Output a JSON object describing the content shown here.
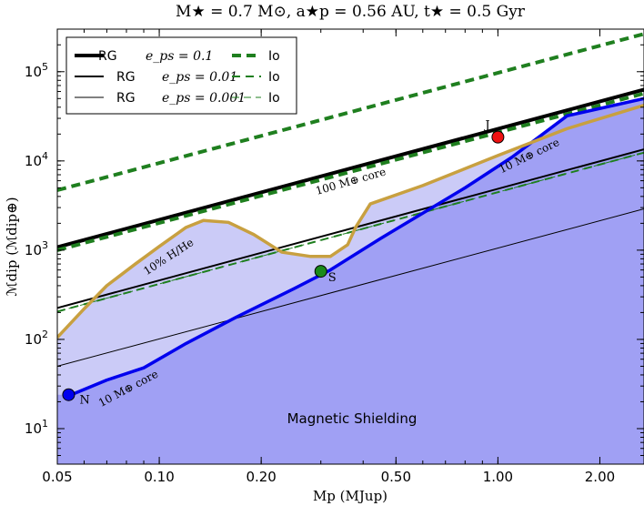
{
  "chart_data": {
    "type": "line",
    "title": "M★ = 0.7 M⊙, a★p = 0.56 AU, t★ = 0.5 Gyr",
    "xlabel": "Mp (MJup)",
    "ylabel": "ℳdip (ℳdip⊕)",
    "x_scale": "log",
    "y_scale": "log",
    "xlim": [
      0.05,
      2.7
    ],
    "ylim": [
      4,
      300000
    ],
    "x_ticks": [
      {
        "value": 0.05,
        "label": "0.05"
      },
      {
        "value": 0.1,
        "label": "0.10"
      },
      {
        "value": 0.2,
        "label": "0.20"
      },
      {
        "value": 0.5,
        "label": "0.50"
      },
      {
        "value": 1.0,
        "label": "1.00"
      },
      {
        "value": 2.0,
        "label": "2.00"
      }
    ],
    "y_ticks": [
      {
        "value": 10,
        "base": "10",
        "exp": "1"
      },
      {
        "value": 100,
        "base": "10",
        "exp": "2"
      },
      {
        "value": 1000,
        "base": "10",
        "exp": "3"
      },
      {
        "value": 10000,
        "base": "10",
        "exp": "4"
      },
      {
        "value": 100000,
        "base": "10",
        "exp": "5"
      }
    ],
    "series": [
      {
        "name": "RG eps=0.1",
        "legend_label": "RG",
        "legend_eps": "e_ps = 0.1",
        "style": "rg-thick",
        "color": "#000000",
        "width": 4,
        "dash": "",
        "x": [
          0.05,
          2.7
        ],
        "y": [
          1080,
          63000
        ]
      },
      {
        "name": "RG eps=0.01",
        "legend_label": "RG",
        "legend_eps": "e_ps = 0.01",
        "style": "rg-medium",
        "color": "#000000",
        "width": 2,
        "dash": "",
        "x": [
          0.05,
          2.7
        ],
        "y": [
          225,
          13500
        ]
      },
      {
        "name": "RG eps=0.001",
        "legend_label": "RG",
        "legend_eps": "e_ps = 0.001",
        "style": "rg-thin",
        "color": "#000000",
        "width": 1,
        "dash": "",
        "x": [
          0.05,
          2.7
        ],
        "y": [
          50,
          2900
        ]
      },
      {
        "name": "Io eps=0.1",
        "legend_label": "Io",
        "style": "io-thick",
        "color": "#1f7f1f",
        "width": 4,
        "dash": "10,6",
        "x": [
          0.05,
          2.7
        ],
        "y": [
          4700,
          265000
        ],
        "extra_x": [
          0.05,
          2.7
        ],
        "extra_y": [
          1000,
          57000
        ]
      },
      {
        "name": "Io eps=0.01",
        "legend_label": "Io",
        "style": "io-medium",
        "color": "#1f7f1f",
        "width": 2,
        "dash": "9,6",
        "x": [
          0.05,
          2.7
        ],
        "y": [
          205,
          12400
        ]
      },
      {
        "name": "Io eps=0.001",
        "legend_label": "Io",
        "style": "io-thin",
        "color": "#1f7f1f",
        "width": 1,
        "dash": "8,5",
        "x": [
          0.05,
          2.7
        ],
        "y": [
          205,
          12400
        ]
      },
      {
        "name": "10 M⊕ core",
        "style": "blue",
        "color": "#0000ee",
        "width": 3.5,
        "dash": "",
        "x": [
          0.055,
          0.07,
          0.09,
          0.12,
          0.17,
          0.25,
          0.32,
          0.45,
          0.6,
          0.8,
          1.1,
          1.6,
          2.7
        ],
        "y": [
          24,
          35,
          48,
          90,
          180,
          370,
          600,
          1350,
          2600,
          5000,
          11000,
          32000,
          50000
        ]
      },
      {
        "name": "100 M⊕ core / 10% H/He",
        "style": "tan",
        "color": "#c8a040",
        "width": 3.5,
        "dash": "",
        "x": [
          0.05,
          0.06,
          0.07,
          0.085,
          0.1,
          0.12,
          0.135,
          0.16,
          0.19,
          0.23,
          0.28,
          0.32,
          0.36,
          0.38,
          0.42,
          0.6,
          1.0,
          1.6,
          2.7
        ],
        "y": [
          105,
          220,
          400,
          700,
          1100,
          1800,
          2150,
          2050,
          1500,
          950,
          850,
          850,
          1150,
          1800,
          3300,
          5300,
          11500,
          23000,
          42000
        ]
      }
    ],
    "planets": [
      {
        "name": "N",
        "x": 0.054,
        "y": 24,
        "color": "#0000ee"
      },
      {
        "name": "S",
        "x": 0.3,
        "y": 580,
        "color": "#1a8a1a"
      },
      {
        "name": "J",
        "x": 1.0,
        "y": 18500,
        "color": "#ee1111"
      }
    ],
    "annotations": [
      {
        "text": "10% H/He",
        "x": 0.108,
        "y": 780,
        "angle": -33
      },
      {
        "text": "100 M⊕ core",
        "x": 0.37,
        "y": 5400,
        "angle": -16
      },
      {
        "text": "10 M⊕ core",
        "x": 1.25,
        "y": 10500,
        "angle": -26
      },
      {
        "text": "10 M⊕ core",
        "x": 0.082,
        "y": 26,
        "angle": -28
      }
    ],
    "region_label": "Magnetic Shielding",
    "fill_colors": {
      "shield": "#a0a0f4",
      "light": "#cbcbf7"
    },
    "legend_position": "top-left",
    "grid": false
  }
}
